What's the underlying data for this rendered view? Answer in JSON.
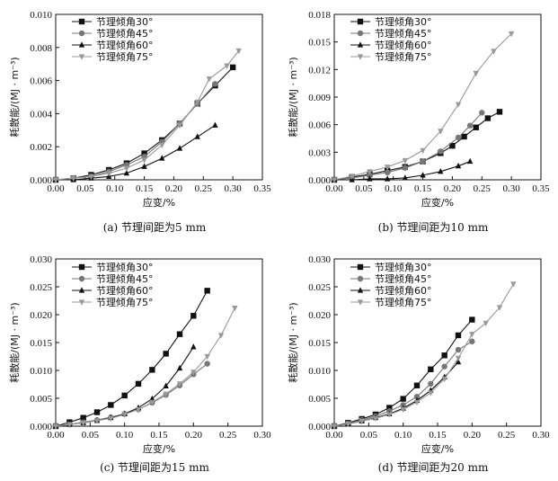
{
  "figure": {
    "colors": {
      "s30": "#111111",
      "s45": "#777777",
      "s60": "#111111",
      "s75": "#999999"
    },
    "markers": {
      "s30": "square",
      "s45": "circle",
      "s60": "triangle-up",
      "s75": "triangle-down"
    }
  },
  "chart_data": [
    {
      "type": "line",
      "caption": "(a) 节理间距为5 mm",
      "xlabel": "应变/%",
      "ylabel": "耗散能/(MJ · m⁻³)",
      "xlim": [
        0,
        0.35
      ],
      "ylim": [
        0,
        0.01
      ],
      "xticks": [
        "0.00",
        "0.05",
        "0.10",
        "0.15",
        "0.20",
        "0.25",
        "0.30",
        "0.35"
      ],
      "yticks": [
        "0.000",
        "0.002",
        "0.004",
        "0.006",
        "0.008",
        "0.010"
      ],
      "legend_position": "top-left",
      "series": [
        {
          "name": "节理倾角30°",
          "x": [
            0.0,
            0.03,
            0.06,
            0.09,
            0.12,
            0.15,
            0.18,
            0.21,
            0.24,
            0.27,
            0.3
          ],
          "y": [
            0.0,
            0.0001,
            0.0003,
            0.0006,
            0.001,
            0.0016,
            0.0024,
            0.0034,
            0.0046,
            0.0057,
            0.0068
          ]
        },
        {
          "name": "节理倾角45°",
          "x": [
            0.0,
            0.03,
            0.06,
            0.09,
            0.12,
            0.15,
            0.18,
            0.21,
            0.24,
            0.27
          ],
          "y": [
            0.0,
            0.0001,
            0.0002,
            0.0005,
            0.0009,
            0.0014,
            0.0023,
            0.0034,
            0.0046,
            0.0058
          ]
        },
        {
          "name": "节理倾角60°",
          "x": [
            0.0,
            0.03,
            0.06,
            0.09,
            0.12,
            0.15,
            0.18,
            0.21,
            0.24,
            0.27
          ],
          "y": [
            0.0,
            0.0,
            0.0001,
            0.0002,
            0.0004,
            0.0008,
            0.0013,
            0.0019,
            0.0026,
            0.0033
          ]
        },
        {
          "name": "节理倾角75°",
          "x": [
            0.0,
            0.03,
            0.06,
            0.09,
            0.12,
            0.15,
            0.18,
            0.21,
            0.24,
            0.26,
            0.29,
            0.31
          ],
          "y": [
            0.0,
            0.0001,
            0.0002,
            0.0004,
            0.0007,
            0.0012,
            0.0021,
            0.0033,
            0.0047,
            0.0061,
            0.0069,
            0.0078
          ]
        }
      ]
    },
    {
      "type": "line",
      "caption": "(b) 节理间距为10 mm",
      "xlabel": "应变/%",
      "ylabel": "耗散能/(MJ · m⁻³)",
      "xlim": [
        0,
        0.35
      ],
      "ylim": [
        0,
        0.018
      ],
      "xticks": [
        "0.00",
        "0.05",
        "0.10",
        "0.15",
        "0.20",
        "0.25",
        "0.30",
        "0.35"
      ],
      "yticks": [
        "0.000",
        "0.003",
        "0.006",
        "0.009",
        "0.012",
        "0.015",
        "0.018"
      ],
      "legend_position": "top-left",
      "series": [
        {
          "name": "节理倾角30°",
          "x": [
            0.0,
            0.03,
            0.06,
            0.09,
            0.12,
            0.15,
            0.18,
            0.2,
            0.22,
            0.24,
            0.26,
            0.28
          ],
          "y": [
            0.0,
            0.0003,
            0.0006,
            0.001,
            0.0014,
            0.002,
            0.0029,
            0.0037,
            0.0047,
            0.0057,
            0.0067,
            0.0074
          ]
        },
        {
          "name": "节理倾角45°",
          "x": [
            0.0,
            0.03,
            0.06,
            0.09,
            0.12,
            0.15,
            0.18,
            0.21,
            0.23,
            0.25
          ],
          "y": [
            0.0,
            0.0002,
            0.0005,
            0.0008,
            0.0013,
            0.002,
            0.0031,
            0.0046,
            0.0059,
            0.0073
          ]
        },
        {
          "name": "节理倾角60°",
          "x": [
            0.0,
            0.03,
            0.06,
            0.09,
            0.12,
            0.15,
            0.18,
            0.21,
            0.23
          ],
          "y": [
            0.0,
            0.0,
            0.0001,
            0.0001,
            0.0002,
            0.0005,
            0.0009,
            0.0015,
            0.002
          ]
        },
        {
          "name": "节理倾角75°",
          "x": [
            0.0,
            0.03,
            0.06,
            0.09,
            0.12,
            0.15,
            0.18,
            0.21,
            0.24,
            0.27,
            0.3
          ],
          "y": [
            0.0,
            0.0004,
            0.0009,
            0.0014,
            0.0021,
            0.0032,
            0.0053,
            0.0082,
            0.0116,
            0.014,
            0.0159
          ]
        }
      ]
    },
    {
      "type": "line",
      "caption": "(c) 节理间距为15 mm",
      "xlabel": "应变/%",
      "ylabel": "耗散能/(MJ · m⁻³)",
      "xlim": [
        0,
        0.3
      ],
      "ylim": [
        0,
        0.03
      ],
      "xticks": [
        "0.00",
        "0.05",
        "0.10",
        "0.15",
        "0.20",
        "0.25",
        "0.30"
      ],
      "yticks": [
        "0.000",
        "0.005",
        "0.010",
        "0.015",
        "0.020",
        "0.025",
        "0.030"
      ],
      "legend_position": "top-left",
      "series": [
        {
          "name": "节理倾角30°",
          "x": [
            0.0,
            0.02,
            0.04,
            0.06,
            0.08,
            0.1,
            0.12,
            0.14,
            0.16,
            0.18,
            0.2,
            0.22
          ],
          "y": [
            0.0,
            0.0007,
            0.0015,
            0.0025,
            0.0038,
            0.0055,
            0.0076,
            0.0101,
            0.013,
            0.0165,
            0.0198,
            0.0243
          ]
        },
        {
          "name": "节理倾角45°",
          "x": [
            0.0,
            0.02,
            0.04,
            0.06,
            0.08,
            0.1,
            0.12,
            0.14,
            0.16,
            0.18,
            0.2,
            0.22
          ],
          "y": [
            0.0,
            0.0003,
            0.0007,
            0.0011,
            0.0016,
            0.0022,
            0.003,
            0.0042,
            0.0056,
            0.0073,
            0.0093,
            0.0112
          ]
        },
        {
          "name": "节理倾角60°",
          "x": [
            0.0,
            0.02,
            0.04,
            0.06,
            0.08,
            0.1,
            0.12,
            0.14,
            0.16,
            0.18,
            0.2
          ],
          "y": [
            0.0,
            0.0003,
            0.0006,
            0.001,
            0.0015,
            0.0022,
            0.0033,
            0.0049,
            0.0072,
            0.0104,
            0.0142
          ]
        },
        {
          "name": "节理倾角75°",
          "x": [
            0.0,
            0.02,
            0.04,
            0.06,
            0.08,
            0.1,
            0.12,
            0.14,
            0.16,
            0.18,
            0.2,
            0.22,
            0.24,
            0.26
          ],
          "y": [
            0.0,
            0.0003,
            0.0006,
            0.001,
            0.0014,
            0.0021,
            0.003,
            0.0043,
            0.0058,
            0.0076,
            0.0097,
            0.0125,
            0.0163,
            0.0212
          ]
        }
      ]
    },
    {
      "type": "line",
      "caption": "(d) 节理间距为20 mm",
      "xlabel": "应变/%",
      "ylabel": "耗散能/(MJ · m⁻³)",
      "xlim": [
        0,
        0.3
      ],
      "ylim": [
        0,
        0.03
      ],
      "xticks": [
        "0.00",
        "0.05",
        "0.10",
        "0.15",
        "0.20",
        "0.25",
        "0.30"
      ],
      "yticks": [
        "0.000",
        "0.005",
        "0.010",
        "0.015",
        "0.020",
        "0.025",
        "0.030"
      ],
      "legend_position": "top-left",
      "series": [
        {
          "name": "节理倾角30°",
          "x": [
            0.0,
            0.02,
            0.04,
            0.06,
            0.08,
            0.1,
            0.12,
            0.14,
            0.16,
            0.18,
            0.2
          ],
          "y": [
            0.0,
            0.0006,
            0.0013,
            0.0021,
            0.0033,
            0.0049,
            0.0073,
            0.0102,
            0.0127,
            0.0163,
            0.0191
          ]
        },
        {
          "name": "节理倾角45°",
          "x": [
            0.0,
            0.02,
            0.04,
            0.06,
            0.08,
            0.1,
            0.12,
            0.14,
            0.16,
            0.18,
            0.2
          ],
          "y": [
            0.0,
            0.0005,
            0.0011,
            0.0018,
            0.0027,
            0.0038,
            0.0053,
            0.0076,
            0.0107,
            0.0137,
            0.0152
          ]
        },
        {
          "name": "节理倾角60°",
          "x": [
            0.0,
            0.02,
            0.04,
            0.06,
            0.08,
            0.1,
            0.12,
            0.14,
            0.16,
            0.18
          ],
          "y": [
            0.0,
            0.0004,
            0.0009,
            0.0015,
            0.0022,
            0.0032,
            0.0046,
            0.0064,
            0.0088,
            0.0115
          ]
        },
        {
          "name": "节理倾角75°",
          "x": [
            0.0,
            0.02,
            0.04,
            0.06,
            0.08,
            0.1,
            0.12,
            0.14,
            0.16,
            0.18,
            0.2,
            0.22,
            0.24,
            0.26
          ],
          "y": [
            0.0,
            0.0004,
            0.0009,
            0.0014,
            0.0021,
            0.003,
            0.0043,
            0.006,
            0.0085,
            0.0122,
            0.0165,
            0.0185,
            0.0213,
            0.0255
          ]
        }
      ]
    }
  ]
}
